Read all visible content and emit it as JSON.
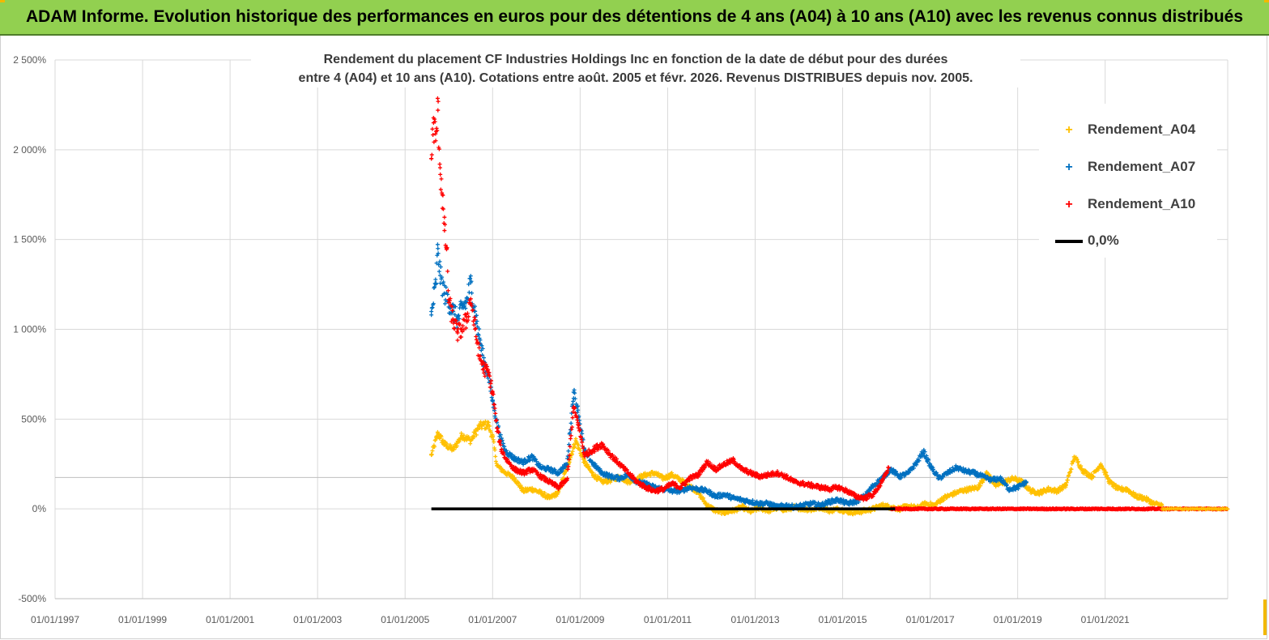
{
  "header": {
    "title": "ADAM Informe. Evolution historique des performances en euros pour des détentions de 4 ans (A04) à 10 ans (A10) avec les revenus connus distribués"
  },
  "colors": {
    "header_bg": "#92d050",
    "a04": "#ffc000",
    "a07": "#0070c0",
    "a10": "#ff0000",
    "zero": "#000000",
    "grid": "#d9d9d9"
  },
  "chart_data": {
    "type": "scatter",
    "title_line1": "Rendement du placement CF Industries Holdings Inc en fonction de la date de début pour des durées",
    "title_line2": "entre 4 (A04) et 10 ans (A10). Cotations entre août. 2005 et févr. 2026. Revenus DISTRIBUES depuis nov. 2005.",
    "ylim": [
      -500,
      2500
    ],
    "xlim": [
      1997.0,
      2023.8
    ],
    "y_ticks": [
      {
        "value": -500,
        "label": "-500%"
      },
      {
        "value": 0,
        "label": "0%"
      },
      {
        "value": 500,
        "label": "500%"
      },
      {
        "value": 1000,
        "label": "1 000%"
      },
      {
        "value": 1500,
        "label": "1 500%"
      },
      {
        "value": 2000,
        "label": "2 000%"
      },
      {
        "value": 2500,
        "label": "2 500%"
      }
    ],
    "x_ticks": [
      {
        "value": 1997,
        "label": "01/01/1997"
      },
      {
        "value": 1999,
        "label": "01/01/1999"
      },
      {
        "value": 2001,
        "label": "01/01/2001"
      },
      {
        "value": 2003,
        "label": "01/01/2003"
      },
      {
        "value": 2005,
        "label": "01/01/2005"
      },
      {
        "value": 2007,
        "label": "01/01/2007"
      },
      {
        "value": 2009,
        "label": "01/01/2009"
      },
      {
        "value": 2011,
        "label": "01/01/2011"
      },
      {
        "value": 2013,
        "label": "01/01/2013"
      },
      {
        "value": 2015,
        "label": "01/01/2015"
      },
      {
        "value": 2017,
        "label": "01/01/2017"
      },
      {
        "value": 2019,
        "label": "01/01/2019"
      },
      {
        "value": 2021,
        "label": "01/01/2021"
      }
    ],
    "reference_line": {
      "name": "0,0%",
      "value": 0,
      "x_range": [
        2005.6,
        2023.8
      ]
    },
    "series": [
      {
        "name": "Rendement_A04",
        "color": "#ffc000",
        "points": [
          [
            2005.6,
            300
          ],
          [
            2005.75,
            420
          ],
          [
            2005.9,
            360
          ],
          [
            2006.1,
            330
          ],
          [
            2006.3,
            410
          ],
          [
            2006.5,
            380
          ],
          [
            2006.7,
            460
          ],
          [
            2006.9,
            470
          ],
          [
            2007.0,
            400
          ],
          [
            2007.1,
            240
          ],
          [
            2007.3,
            200
          ],
          [
            2007.5,
            170
          ],
          [
            2007.7,
            100
          ],
          [
            2007.9,
            110
          ],
          [
            2008.1,
            90
          ],
          [
            2008.3,
            60
          ],
          [
            2008.5,
            90
          ],
          [
            2008.7,
            230
          ],
          [
            2008.9,
            380
          ],
          [
            2009.1,
            260
          ],
          [
            2009.3,
            190
          ],
          [
            2009.5,
            150
          ],
          [
            2009.7,
            160
          ],
          [
            2009.9,
            180
          ],
          [
            2010.1,
            150
          ],
          [
            2010.3,
            170
          ],
          [
            2010.5,
            190
          ],
          [
            2010.7,
            200
          ],
          [
            2010.9,
            170
          ],
          [
            2011.1,
            190
          ],
          [
            2011.3,
            160
          ],
          [
            2011.5,
            130
          ],
          [
            2011.7,
            90
          ],
          [
            2011.9,
            20
          ],
          [
            2012.1,
            -10
          ],
          [
            2012.3,
            -20
          ],
          [
            2012.5,
            -10
          ],
          [
            2012.7,
            10
          ],
          [
            2012.9,
            -15
          ],
          [
            2013.1,
            5
          ],
          [
            2013.3,
            -10
          ],
          [
            2013.5,
            5
          ],
          [
            2013.7,
            -5
          ],
          [
            2013.9,
            10
          ],
          [
            2014.1,
            0
          ],
          [
            2014.3,
            -5
          ],
          [
            2014.5,
            10
          ],
          [
            2014.7,
            -10
          ],
          [
            2014.9,
            0
          ],
          [
            2015.1,
            -15
          ],
          [
            2015.3,
            -20
          ],
          [
            2015.5,
            -10
          ],
          [
            2015.7,
            0
          ],
          [
            2015.9,
            20
          ],
          [
            2016.1,
            10
          ],
          [
            2016.3,
            0
          ],
          [
            2016.5,
            15
          ],
          [
            2016.7,
            5
          ],
          [
            2016.9,
            30
          ],
          [
            2017.1,
            20
          ],
          [
            2017.3,
            60
          ],
          [
            2017.5,
            80
          ],
          [
            2017.7,
            100
          ],
          [
            2017.9,
            110
          ],
          [
            2018.1,
            120
          ],
          [
            2018.3,
            200
          ],
          [
            2018.5,
            130
          ],
          [
            2018.7,
            150
          ],
          [
            2018.9,
            170
          ],
          [
            2019.1,
            150
          ],
          [
            2019.3,
            100
          ],
          [
            2019.5,
            90
          ],
          [
            2019.7,
            110
          ],
          [
            2019.9,
            100
          ],
          [
            2020.1,
            130
          ],
          [
            2020.3,
            290
          ],
          [
            2020.5,
            210
          ],
          [
            2020.7,
            180
          ],
          [
            2020.9,
            250
          ],
          [
            2021.1,
            150
          ],
          [
            2021.3,
            110
          ],
          [
            2021.5,
            110
          ],
          [
            2021.7,
            70
          ],
          [
            2021.9,
            60
          ],
          [
            2022.1,
            30
          ],
          [
            2022.3,
            20
          ]
        ]
      },
      {
        "name": "Rendement_A07",
        "color": "#0070c0",
        "points": [
          [
            2005.6,
            1080
          ],
          [
            2005.7,
            1250
          ],
          [
            2005.75,
            1450
          ],
          [
            2005.8,
            1300
          ],
          [
            2005.9,
            1200
          ],
          [
            2006.0,
            1150
          ],
          [
            2006.1,
            1100
          ],
          [
            2006.2,
            1050
          ],
          [
            2006.3,
            1120
          ],
          [
            2006.4,
            1150
          ],
          [
            2006.5,
            1260
          ],
          [
            2006.6,
            1100
          ],
          [
            2006.7,
            950
          ],
          [
            2006.8,
            820
          ],
          [
            2006.9,
            750
          ],
          [
            2007.0,
            600
          ],
          [
            2007.1,
            480
          ],
          [
            2007.2,
            380
          ],
          [
            2007.3,
            320
          ],
          [
            2007.5,
            280
          ],
          [
            2007.7,
            260
          ],
          [
            2007.9,
            290
          ],
          [
            2008.1,
            230
          ],
          [
            2008.3,
            220
          ],
          [
            2008.5,
            200
          ],
          [
            2008.7,
            250
          ],
          [
            2008.85,
            650
          ],
          [
            2008.95,
            550
          ],
          [
            2009.1,
            320
          ],
          [
            2009.3,
            250
          ],
          [
            2009.5,
            200
          ],
          [
            2009.7,
            180
          ],
          [
            2009.9,
            170
          ],
          [
            2010.1,
            190
          ],
          [
            2010.3,
            150
          ],
          [
            2010.5,
            140
          ],
          [
            2010.7,
            120
          ],
          [
            2010.9,
            110
          ],
          [
            2011.1,
            100
          ],
          [
            2011.3,
            100
          ],
          [
            2011.5,
            120
          ],
          [
            2011.7,
            110
          ],
          [
            2011.9,
            100
          ],
          [
            2012.1,
            70
          ],
          [
            2012.3,
            80
          ],
          [
            2012.5,
            60
          ],
          [
            2012.7,
            50
          ],
          [
            2012.9,
            40
          ],
          [
            2013.1,
            30
          ],
          [
            2013.3,
            30
          ],
          [
            2013.5,
            10
          ],
          [
            2013.7,
            20
          ],
          [
            2013.9,
            10
          ],
          [
            2014.1,
            20
          ],
          [
            2014.3,
            30
          ],
          [
            2014.5,
            20
          ],
          [
            2014.7,
            40
          ],
          [
            2014.9,
            50
          ],
          [
            2015.1,
            30
          ],
          [
            2015.3,
            40
          ],
          [
            2015.5,
            70
          ],
          [
            2015.7,
            130
          ],
          [
            2015.9,
            170
          ],
          [
            2016.1,
            220
          ],
          [
            2016.3,
            180
          ],
          [
            2016.5,
            200
          ],
          [
            2016.7,
            260
          ],
          [
            2016.85,
            320
          ],
          [
            2017.0,
            240
          ],
          [
            2017.2,
            170
          ],
          [
            2017.4,
            200
          ],
          [
            2017.6,
            230
          ],
          [
            2017.8,
            210
          ],
          [
            2018.0,
            200
          ],
          [
            2018.2,
            180
          ],
          [
            2018.4,
            160
          ],
          [
            2018.6,
            170
          ],
          [
            2018.8,
            110
          ],
          [
            2019.0,
            120
          ],
          [
            2019.2,
            150
          ]
        ]
      },
      {
        "name": "Rendement_A10",
        "color": "#ff0000",
        "points": [
          [
            2005.6,
            1950
          ],
          [
            2005.65,
            2150
          ],
          [
            2005.7,
            2050
          ],
          [
            2005.75,
            2220
          ],
          [
            2005.8,
            1900
          ],
          [
            2005.85,
            1750
          ],
          [
            2005.9,
            1550
          ],
          [
            2005.95,
            1450
          ],
          [
            2006.0,
            1150
          ],
          [
            2006.1,
            1050
          ],
          [
            2006.2,
            980
          ],
          [
            2006.3,
            1000
          ],
          [
            2006.4,
            1050
          ],
          [
            2006.5,
            1170
          ],
          [
            2006.6,
            1000
          ],
          [
            2006.7,
            850
          ],
          [
            2006.8,
            780
          ],
          [
            2006.9,
            760
          ],
          [
            2007.0,
            650
          ],
          [
            2007.1,
            450
          ],
          [
            2007.2,
            330
          ],
          [
            2007.3,
            280
          ],
          [
            2007.5,
            220
          ],
          [
            2007.7,
            200
          ],
          [
            2007.9,
            220
          ],
          [
            2008.1,
            180
          ],
          [
            2008.3,
            150
          ],
          [
            2008.5,
            120
          ],
          [
            2008.7,
            160
          ],
          [
            2008.85,
            560
          ],
          [
            2008.95,
            480
          ],
          [
            2009.1,
            300
          ],
          [
            2009.3,
            330
          ],
          [
            2009.5,
            360
          ],
          [
            2009.7,
            300
          ],
          [
            2009.9,
            250
          ],
          [
            2010.1,
            200
          ],
          [
            2010.3,
            150
          ],
          [
            2010.5,
            120
          ],
          [
            2010.7,
            100
          ],
          [
            2010.9,
            110
          ],
          [
            2011.1,
            140
          ],
          [
            2011.3,
            120
          ],
          [
            2011.5,
            170
          ],
          [
            2011.7,
            190
          ],
          [
            2011.9,
            260
          ],
          [
            2012.1,
            220
          ],
          [
            2012.3,
            250
          ],
          [
            2012.5,
            270
          ],
          [
            2012.7,
            220
          ],
          [
            2012.9,
            200
          ],
          [
            2013.1,
            180
          ],
          [
            2013.3,
            190
          ],
          [
            2013.5,
            200
          ],
          [
            2013.7,
            180
          ],
          [
            2013.9,
            150
          ],
          [
            2014.1,
            140
          ],
          [
            2014.3,
            130
          ],
          [
            2014.5,
            120
          ],
          [
            2014.7,
            110
          ],
          [
            2014.9,
            120
          ],
          [
            2015.1,
            100
          ],
          [
            2015.3,
            70
          ],
          [
            2015.5,
            60
          ],
          [
            2015.7,
            80
          ],
          [
            2015.9,
            150
          ],
          [
            2016.05,
            230
          ]
        ]
      }
    ],
    "legend": [
      {
        "name": "Rendement_A04",
        "marker": "+",
        "color": "#ffc000"
      },
      {
        "name": "Rendement_A07",
        "marker": "+",
        "color": "#0070c0"
      },
      {
        "name": "Rendement_A10",
        "marker": "+",
        "color": "#ff0000"
      },
      {
        "name": "0,0%",
        "marker": "line",
        "color": "#000000"
      }
    ]
  }
}
